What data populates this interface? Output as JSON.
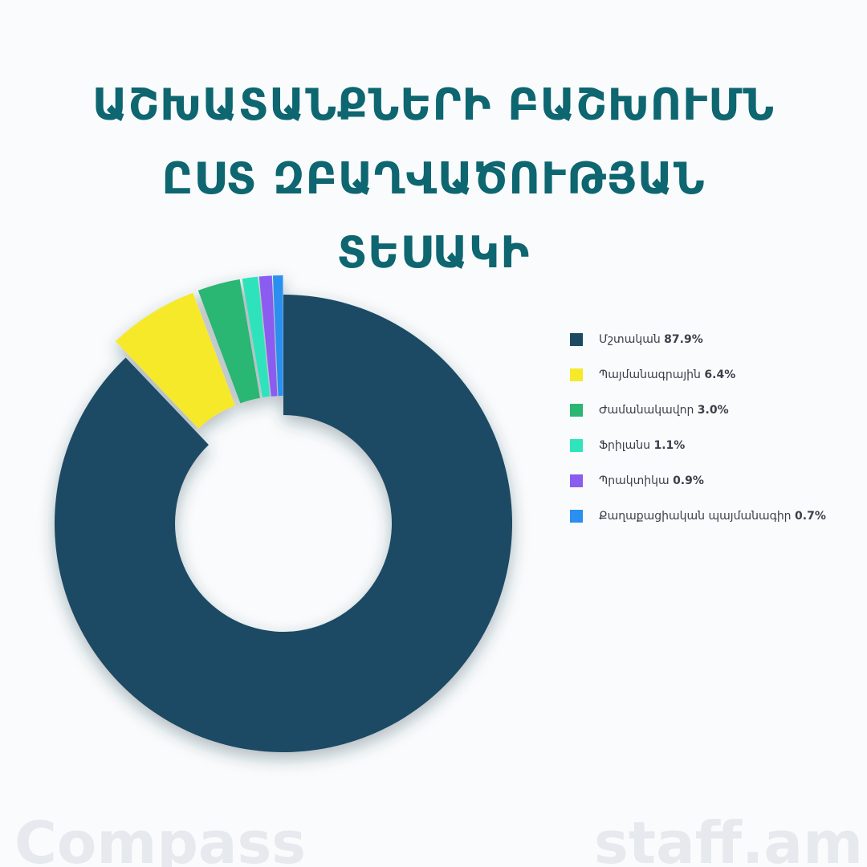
{
  "chart_data": {
    "type": "donut",
    "title": "ԱՇԽԱՏԱՆՔՆԵՐԻ ԲԱՇԽՈՒՄՆ ԸՍՏ ԶԲԱՂՎԱԾՈՒԹՅԱՆ ՏԵՍԱԿԻ",
    "categories": [
      "Մշտական",
      "Պայմանագրային",
      "Ժամանակավոր",
      "Ֆրիլանս",
      "Պրակտիկա",
      "Քաղաքացիական պայմանագիր"
    ],
    "values": [
      87.9,
      6.4,
      3.0,
      1.1,
      0.9,
      0.7
    ],
    "value_labels": [
      "87.9%",
      "6.4%",
      "3.0%",
      "1.1%",
      "0.9%",
      "0.7%"
    ],
    "colors": [
      "#1d4a63",
      "#f5e92a",
      "#2bb673",
      "#2fe3bb",
      "#8a5cf0",
      "#2a8ff0"
    ],
    "legend": "right",
    "watermarks": [
      "Compass",
      "staff.am"
    ]
  }
}
